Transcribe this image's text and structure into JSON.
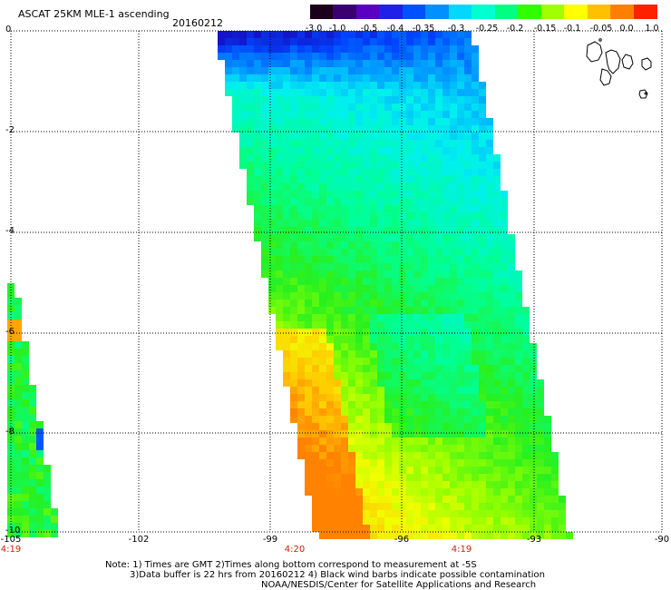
{
  "header": {
    "title": "ASCAT 25KM MLE-1 ascending",
    "date": "20160212"
  },
  "colorbar": {
    "labels": [
      "-3.0",
      "-1.0",
      "-0.5",
      "-0.4",
      "-0.35",
      "-0.3",
      "-0.25",
      "-0.2",
      "-0.15",
      "-0.1",
      "-0.05",
      "0.0",
      "1.0"
    ],
    "colors": [
      "#1a001a",
      "#3a0070",
      "#5a00c0",
      "#2020e8",
      "#0050ff",
      "#0090ff",
      "#00d8ff",
      "#00ffd0",
      "#00ff80",
      "#30ff00",
      "#a0ff00",
      "#ffff00",
      "#ffc000",
      "#ff8000",
      "#ff2000"
    ]
  },
  "map": {
    "lat_labels": [
      "0",
      "-2",
      "-4",
      "-6",
      "-8",
      "-10"
    ],
    "lon_labels": [
      "-105",
      "-102",
      "-99",
      "-96",
      "-93",
      "-90"
    ],
    "time_labels": [
      "4:19",
      "4:20",
      "4:19"
    ]
  },
  "notes": {
    "line1": "Note: 1) Times are GMT 2)Times along bottom correspond to measurement at -5S",
    "line2": "3)Data buffer is 22 hrs from 20160212 4) Black wind barbs indicate possible contamination",
    "line3": "NOAA/NESDIS/Center for Satellite Applications and Research"
  }
}
